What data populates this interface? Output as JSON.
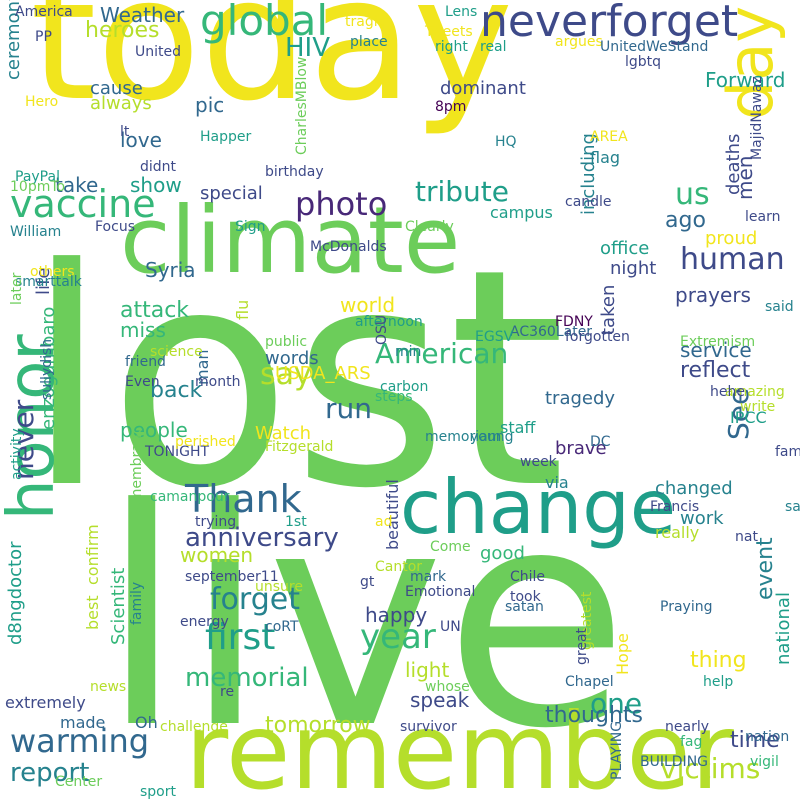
{
  "palette": {
    "yellow": "#f1e51d",
    "lime": "#b5de2b",
    "green": "#6ccd5a",
    "mint": "#35b779",
    "teal": "#1f9e89",
    "cyan": "#26828e",
    "blue": "#31688e",
    "indigo": "#3e4a89",
    "purple": "#482878",
    "dark": "#440154"
  },
  "words": [
    {
      "text": "lost",
      "color": "green"
    },
    {
      "text": "live",
      "color": "green"
    },
    {
      "text": "today",
      "color": "yellow"
    },
    {
      "text": "remember",
      "color": "lime"
    },
    {
      "text": "climate",
      "color": "green"
    },
    {
      "text": "change",
      "color": "teal"
    },
    {
      "text": "neverforget",
      "color": "indigo"
    },
    {
      "text": "honor",
      "color": "mint"
    },
    {
      "text": "day",
      "color": "yellow"
    },
    {
      "text": "global",
      "color": "mint"
    },
    {
      "text": "vaccine",
      "color": "mint"
    },
    {
      "text": "tribute",
      "color": "teal"
    },
    {
      "text": "photo",
      "color": "purple"
    },
    {
      "text": "human",
      "color": "indigo"
    },
    {
      "text": "Thank",
      "color": "blue"
    },
    {
      "text": "say",
      "color": "lime"
    },
    {
      "text": "year",
      "color": "mint"
    },
    {
      "text": "first",
      "color": "teal"
    },
    {
      "text": "forget",
      "color": "cyan"
    },
    {
      "text": "warming",
      "color": "blue"
    },
    {
      "text": "never",
      "color": "indigo"
    },
    {
      "text": "anniversary",
      "color": "indigo"
    },
    {
      "text": "run",
      "color": "blue"
    },
    {
      "text": "memorial",
      "color": "mint"
    },
    {
      "text": "See",
      "color": "blue"
    },
    {
      "text": "report",
      "color": "cyan"
    },
    {
      "text": "victims",
      "color": "lime"
    },
    {
      "text": "us",
      "color": "mint"
    },
    {
      "text": "one",
      "color": "teal"
    },
    {
      "text": "American",
      "color": "mint"
    },
    {
      "text": "HIV",
      "color": "teal"
    },
    {
      "text": "Weather",
      "color": "blue"
    },
    {
      "text": "heroes",
      "color": "lime"
    },
    {
      "text": "tomorrow",
      "color": "lime"
    },
    {
      "text": "attack",
      "color": "mint"
    },
    {
      "text": "ago",
      "color": "blue"
    },
    {
      "text": "event",
      "color": "cyan"
    },
    {
      "text": "time",
      "color": "indigo"
    },
    {
      "text": "thing",
      "color": "yellow"
    },
    {
      "text": "reflect",
      "color": "indigo"
    },
    {
      "text": "service",
      "color": "blue"
    },
    {
      "text": "thoughts",
      "color": "blue"
    },
    {
      "text": "speak",
      "color": "indigo"
    },
    {
      "text": "light",
      "color": "lime"
    },
    {
      "text": "women",
      "color": "lime"
    },
    {
      "text": "people",
      "color": "mint"
    },
    {
      "text": "back",
      "color": "cyan"
    },
    {
      "text": "world",
      "color": "yellow"
    },
    {
      "text": "miss",
      "color": "mint"
    },
    {
      "text": "Syria",
      "color": "blue"
    },
    {
      "text": "prayers",
      "color": "indigo"
    },
    {
      "text": "happy",
      "color": "indigo"
    },
    {
      "text": "Watch",
      "color": "yellow"
    },
    {
      "text": "words",
      "color": "blue"
    },
    {
      "text": "special",
      "color": "indigo"
    },
    {
      "text": "pic",
      "color": "blue"
    },
    {
      "text": "love",
      "color": "blue"
    },
    {
      "text": "show",
      "color": "teal"
    },
    {
      "text": "take",
      "color": "blue"
    },
    {
      "text": "cause",
      "color": "blue"
    },
    {
      "text": "always",
      "color": "lime"
    },
    {
      "text": "men",
      "color": "indigo"
    },
    {
      "text": "Forward",
      "color": "teal"
    },
    {
      "text": "dominant",
      "color": "indigo"
    },
    {
      "text": "including",
      "color": "cyan"
    },
    {
      "text": "deaths",
      "color": "indigo"
    },
    {
      "text": "flag",
      "color": "cyan"
    },
    {
      "text": "office",
      "color": "teal"
    },
    {
      "text": "night",
      "color": "indigo"
    },
    {
      "text": "taken",
      "color": "indigo"
    },
    {
      "text": "proud",
      "color": "yellow"
    },
    {
      "text": "campus",
      "color": "teal"
    },
    {
      "text": "USDA_ARS",
      "color": "yellow"
    },
    {
      "text": "tragedy",
      "color": "blue"
    },
    {
      "text": "staff",
      "color": "teal"
    },
    {
      "text": "brave",
      "color": "purple"
    },
    {
      "text": "via",
      "color": "cyan"
    },
    {
      "text": "changed",
      "color": "cyan"
    },
    {
      "text": "work",
      "color": "cyan"
    },
    {
      "text": "really",
      "color": "lime"
    },
    {
      "text": "good",
      "color": "mint"
    },
    {
      "text": "Hope",
      "color": "yellow"
    },
    {
      "text": "made",
      "color": "blue"
    },
    {
      "text": "Oh",
      "color": "blue"
    },
    {
      "text": "extremely",
      "color": "indigo"
    },
    {
      "text": "national",
      "color": "teal"
    },
    {
      "text": "IPCC",
      "color": "teal"
    },
    {
      "text": "amazing",
      "color": "lime"
    },
    {
      "text": "families",
      "color": "indigo"
    },
    {
      "text": "survivor",
      "color": "indigo"
    },
    {
      "text": "best",
      "color": "lime"
    },
    {
      "text": "confirm",
      "color": "lime"
    },
    {
      "text": "Scientist",
      "color": "mint"
    },
    {
      "text": "d8ngdoctor",
      "color": "teal"
    },
    {
      "text": "enzogambaro",
      "color": "mint"
    },
    {
      "text": "life",
      "color": "indigo"
    },
    {
      "text": "man",
      "color": "blue"
    },
    {
      "text": "ceremony",
      "color": "cyan"
    },
    {
      "text": "beautiful",
      "color": "indigo"
    },
    {
      "text": "september11",
      "color": "indigo"
    },
    {
      "text": "mark",
      "color": "blue"
    },
    {
      "text": "flu",
      "color": "lime"
    },
    {
      "text": "McDonalds",
      "color": "indigo"
    },
    {
      "text": "Fitzgerald",
      "color": "lime"
    },
    {
      "text": "Come",
      "color": "green"
    },
    {
      "text": "Chapel",
      "color": "blue"
    },
    {
      "text": "Praying",
      "color": "blue"
    },
    {
      "text": "nearly",
      "color": "indigo"
    },
    {
      "text": "vigil",
      "color": "mint"
    },
    {
      "text": "sport",
      "color": "teal"
    },
    {
      "text": "PLAYING",
      "color": "blue"
    },
    {
      "text": "BUILDING",
      "color": "blue"
    },
    {
      "text": "Center",
      "color": "green"
    },
    {
      "text": "challenge",
      "color": "lime"
    },
    {
      "text": "news",
      "color": "lime"
    },
    {
      "text": "whose",
      "color": "green"
    },
    {
      "text": "re",
      "color": "indigo"
    },
    {
      "text": "help",
      "color": "teal"
    },
    {
      "text": "fag",
      "color": "mint"
    },
    {
      "text": "nation",
      "color": "blue"
    },
    {
      "text": "America",
      "color": "indigo"
    },
    {
      "text": "PP",
      "color": "indigo"
    },
    {
      "text": "United",
      "color": "indigo"
    },
    {
      "text": "tragic",
      "color": "yellow"
    },
    {
      "text": "place",
      "color": "cyan"
    },
    {
      "text": "Lens",
      "color": "teal"
    },
    {
      "text": "Tweets",
      "color": "yellow"
    },
    {
      "text": "right",
      "color": "teal"
    },
    {
      "text": "real",
      "color": "teal"
    },
    {
      "text": "argues",
      "color": "yellow"
    },
    {
      "text": "UnitedWeStand",
      "color": "blue"
    },
    {
      "text": "lgbtq",
      "color": "indigo"
    },
    {
      "text": "Hero",
      "color": "yellow"
    },
    {
      "text": "8pm",
      "color": "dark"
    },
    {
      "text": "lt",
      "color": "indigo"
    },
    {
      "text": "CharlesMBlow",
      "color": "green"
    },
    {
      "text": "Happer",
      "color": "teal"
    },
    {
      "text": "HQ",
      "color": "cyan"
    },
    {
      "text": "AREA",
      "color": "yellow"
    },
    {
      "text": "didnt",
      "color": "indigo"
    },
    {
      "text": "birthday",
      "color": "indigo"
    },
    {
      "text": "PayPal",
      "color": "teal"
    },
    {
      "text": "10pmTo",
      "color": "green"
    },
    {
      "text": "candle",
      "color": "indigo"
    },
    {
      "text": "MajidNawaz",
      "color": "indigo"
    },
    {
      "text": "William",
      "color": "cyan"
    },
    {
      "text": "Focus",
      "color": "indigo"
    },
    {
      "text": "Sign",
      "color": "teal"
    },
    {
      "text": "Clearly",
      "color": "green"
    },
    {
      "text": "learn",
      "color": "indigo"
    },
    {
      "text": "others",
      "color": "yellow"
    },
    {
      "text": "smarttalk",
      "color": "cyan"
    },
    {
      "text": "later",
      "color": "green"
    },
    {
      "text": "AC360Later",
      "color": "blue"
    },
    {
      "text": "said",
      "color": "cyan"
    },
    {
      "text": "FDNY",
      "color": "dark"
    },
    {
      "text": "afternoon",
      "color": "teal"
    },
    {
      "text": "public",
      "color": "green"
    },
    {
      "text": "friend",
      "color": "blue"
    },
    {
      "text": "science",
      "color": "lime"
    },
    {
      "text": "EGSV",
      "color": "teal"
    },
    {
      "text": "forgotten",
      "color": "indigo"
    },
    {
      "text": "Extremism",
      "color": "green"
    },
    {
      "text": "OSU",
      "color": "indigo"
    },
    {
      "text": "min",
      "color": "cyan"
    },
    {
      "text": "hehe",
      "color": "indigo"
    },
    {
      "text": "write",
      "color": "lime"
    },
    {
      "text": "Even",
      "color": "indigo"
    },
    {
      "text": "month",
      "color": "indigo"
    },
    {
      "text": "steps",
      "color": "mint"
    },
    {
      "text": "carbon",
      "color": "teal"
    },
    {
      "text": "sullydish",
      "color": "blue"
    },
    {
      "text": "memoriam",
      "color": "cyan"
    },
    {
      "text": "young",
      "color": "cyan"
    },
    {
      "text": "TONIGHT",
      "color": "indigo"
    },
    {
      "text": "perished",
      "color": "yellow"
    },
    {
      "text": "DC",
      "color": "blue"
    },
    {
      "text": "activity",
      "color": "teal"
    },
    {
      "text": "camanpour",
      "color": "mint"
    },
    {
      "text": "week",
      "color": "indigo"
    },
    {
      "text": "Francis",
      "color": "indigo"
    },
    {
      "text": "save",
      "color": "cyan"
    },
    {
      "text": "trying",
      "color": "indigo"
    },
    {
      "text": "1st",
      "color": "teal"
    },
    {
      "text": "ad",
      "color": "yellow"
    },
    {
      "text": "nat",
      "color": "indigo"
    },
    {
      "text": "Cantor",
      "color": "lime"
    },
    {
      "text": "unsure",
      "color": "lime"
    },
    {
      "text": "gt",
      "color": "indigo"
    },
    {
      "text": "Emotional",
      "color": "indigo"
    },
    {
      "text": "Chile",
      "color": "indigo"
    },
    {
      "text": "took",
      "color": "indigo"
    },
    {
      "text": "satan",
      "color": "blue"
    },
    {
      "text": "greatest",
      "color": "lime"
    },
    {
      "text": "great",
      "color": "indigo"
    },
    {
      "text": "UN",
      "color": "indigo"
    },
    {
      "text": "energy",
      "color": "indigo"
    },
    {
      "text": "coRT",
      "color": "blue"
    },
    {
      "text": "family",
      "color": "cyan"
    },
    {
      "text": "Remembrance",
      "color": "green"
    }
  ]
}
